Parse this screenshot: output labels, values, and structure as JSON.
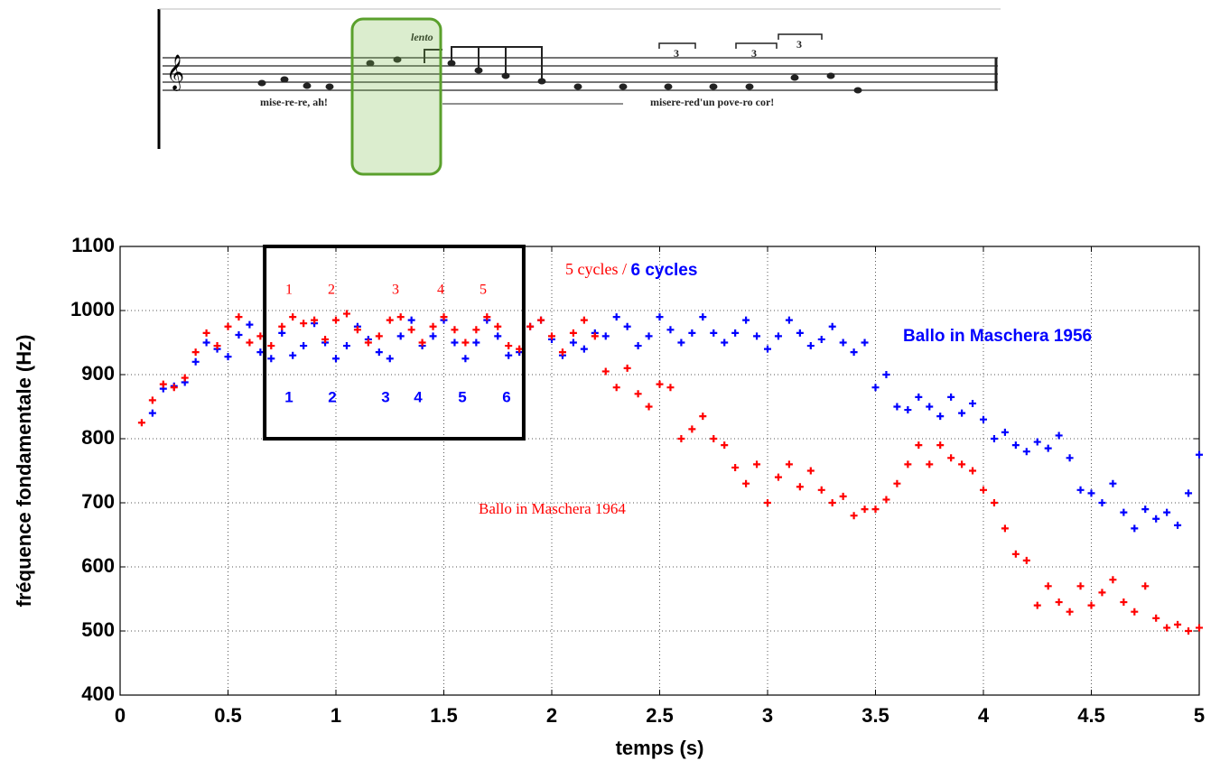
{
  "score": {
    "tempo": "lento",
    "lyrics": [
      "mise-re-re, ah!",
      "misere-red'un pove-ro cor!"
    ],
    "triplets": [
      "3",
      "3",
      "3"
    ]
  },
  "chart_data": {
    "type": "scatter",
    "xlabel": "temps (s)",
    "ylabel": "fréquence fondamentale (Hz)",
    "xlim": [
      0,
      5
    ],
    "xticks": [
      0,
      0.5,
      1,
      1.5,
      2,
      2.5,
      3,
      3.5,
      4,
      4.5,
      5
    ],
    "ylim": [
      400,
      1100
    ],
    "yticks": [
      400,
      500,
      600,
      700,
      800,
      900,
      1000,
      1100
    ],
    "grid": true,
    "highlight_box": {
      "x": [
        0.67,
        1.87
      ],
      "y": [
        800,
        1100
      ]
    },
    "annotations": {
      "cycles_red": "5 cycles / ",
      "cycles_blue": "6 cycles",
      "red_numbers": [
        "1",
        "2",
        "3",
        "4",
        "5"
      ],
      "blue_numbers": [
        "1",
        "2",
        "3",
        "4",
        "5",
        "6"
      ]
    },
    "series": [
      {
        "name": "Ballo in Maschera 1956",
        "color": "#0000ff",
        "x": [
          0.15,
          0.2,
          0.25,
          0.3,
          0.35,
          0.4,
          0.45,
          0.5,
          0.55,
          0.6,
          0.65,
          0.7,
          0.75,
          0.8,
          0.85,
          0.9,
          0.95,
          1,
          1.05,
          1.1,
          1.15,
          1.2,
          1.25,
          1.3,
          1.35,
          1.4,
          1.45,
          1.5,
          1.55,
          1.6,
          1.65,
          1.7,
          1.75,
          1.8,
          1.85,
          1.9,
          1.95,
          2,
          2.05,
          2.1,
          2.15,
          2.2,
          2.25,
          2.3,
          2.35,
          2.4,
          2.45,
          2.5,
          2.55,
          2.6,
          2.65,
          2.7,
          2.75,
          2.8,
          2.85,
          2.9,
          2.95,
          3,
          3.05,
          3.1,
          3.15,
          3.2,
          3.25,
          3.3,
          3.35,
          3.4,
          3.45,
          3.5,
          3.55,
          3.6,
          3.65,
          3.7,
          3.75,
          3.8,
          3.85,
          3.9,
          3.95,
          4,
          4.05,
          4.1,
          4.15,
          4.2,
          4.25,
          4.3,
          4.35,
          4.4,
          4.45,
          4.5,
          4.55,
          4.6,
          4.65,
          4.7,
          4.75,
          4.8,
          4.85,
          4.9,
          4.95,
          5
        ],
        "values": [
          840,
          878,
          882,
          888,
          920,
          950,
          940,
          928,
          962,
          978,
          935,
          925,
          965,
          930,
          945,
          980,
          950,
          925,
          945,
          975,
          955,
          935,
          925,
          960,
          985,
          945,
          960,
          985,
          950,
          925,
          950,
          985,
          960,
          930,
          935,
          975,
          985,
          955,
          930,
          950,
          940,
          965,
          960,
          990,
          975,
          945,
          960,
          990,
          970,
          950,
          965,
          990,
          965,
          950,
          965,
          985,
          960,
          940,
          960,
          985,
          965,
          945,
          955,
          975,
          950,
          935,
          950,
          880,
          900,
          850,
          845,
          865,
          850,
          835,
          865,
          840,
          855,
          830,
          800,
          810,
          790,
          780,
          795,
          785,
          805,
          770,
          720,
          715,
          700,
          730,
          685,
          660,
          690,
          675,
          685,
          665,
          715,
          775
        ]
      },
      {
        "name": "Ballo in Maschera 1964",
        "color": "#ff0000",
        "x": [
          0.1,
          0.15,
          0.2,
          0.25,
          0.3,
          0.35,
          0.4,
          0.45,
          0.5,
          0.55,
          0.6,
          0.65,
          0.7,
          0.75,
          0.8,
          0.85,
          0.9,
          0.95,
          1,
          1.05,
          1.1,
          1.15,
          1.2,
          1.25,
          1.3,
          1.35,
          1.4,
          1.45,
          1.5,
          1.55,
          1.6,
          1.65,
          1.7,
          1.75,
          1.8,
          1.85,
          1.9,
          1.95,
          2,
          2.05,
          2.1,
          2.15,
          2.2,
          2.25,
          2.3,
          2.35,
          2.4,
          2.45,
          2.5,
          2.55,
          2.6,
          2.65,
          2.7,
          2.75,
          2.8,
          2.85,
          2.9,
          2.95,
          3,
          3.05,
          3.1,
          3.15,
          3.2,
          3.25,
          3.3,
          3.35,
          3.4,
          3.45,
          3.5,
          3.55,
          3.6,
          3.65,
          3.7,
          3.75,
          3.8,
          3.85,
          3.9,
          3.95,
          4,
          4.05,
          4.1,
          4.15,
          4.2,
          4.25,
          4.3,
          4.35,
          4.4,
          4.45,
          4.5,
          4.55,
          4.6,
          4.65,
          4.7,
          4.75,
          4.8,
          4.85,
          4.9,
          4.95,
          5
        ],
        "values": [
          825,
          860,
          885,
          880,
          895,
          935,
          965,
          945,
          975,
          990,
          950,
          960,
          945,
          975,
          990,
          980,
          985,
          955,
          985,
          995,
          970,
          950,
          960,
          985,
          990,
          970,
          950,
          975,
          990,
          970,
          950,
          970,
          990,
          975,
          945,
          940,
          975,
          985,
          960,
          935,
          965,
          985,
          960,
          905,
          880,
          910,
          870,
          850,
          885,
          880,
          800,
          815,
          835,
          800,
          790,
          755,
          730,
          760,
          700,
          740,
          760,
          725,
          750,
          720,
          700,
          710,
          680,
          690,
          690,
          705,
          730,
          760,
          790,
          760,
          790,
          770,
          760,
          750,
          720,
          700,
          660,
          620,
          610,
          540,
          570,
          545,
          530,
          570,
          540,
          560,
          580,
          545,
          530,
          570,
          520,
          505,
          510,
          500,
          505
        ]
      }
    ]
  }
}
